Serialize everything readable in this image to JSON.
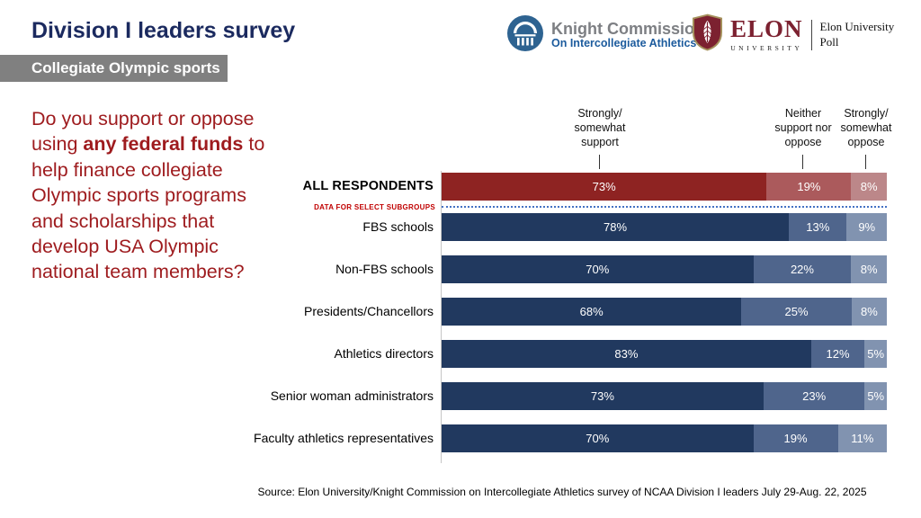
{
  "header": {
    "title": "Division I leaders survey",
    "banner": "Collegiate Olympic sports"
  },
  "logos": {
    "knight": {
      "name": "Knight Commission",
      "tagline": "On Intercollegiate Athletics"
    },
    "elon": {
      "wordmark": "ELON",
      "university": "UNIVERSITY",
      "poll_line1": "Elon University",
      "poll_line2": "Poll"
    }
  },
  "question": {
    "pre": "Do you support or oppose using ",
    "emphasis": "any federal funds",
    "post": " to help finance collegiate Olympic sports programs and scholarships that develop USA Olympic national team members?"
  },
  "chart_data": {
    "type": "bar",
    "orientation": "horizontal",
    "stacked": true,
    "xlim": [
      0,
      100
    ],
    "unit": "%",
    "column_headers": [
      "Strongly/\nsomewhat\nsupport",
      "Neither\nsupport nor\noppose",
      "Strongly/\nsomewhat\noppose"
    ],
    "divider_label": "DATA FOR SELECT SUBGROUPS",
    "categories": [
      "ALL RESPONDENTS",
      "FBS schools",
      "Non-FBS schools",
      "Presidents/Chancellors",
      "Athletics directors",
      "Senior woman administrators",
      "Faculty athletics representatives"
    ],
    "series": [
      {
        "name": "Strongly/somewhat support",
        "values": [
          73,
          78,
          70,
          68,
          83,
          73,
          70
        ]
      },
      {
        "name": "Neither support nor oppose",
        "values": [
          19,
          13,
          22,
          25,
          12,
          23,
          19
        ]
      },
      {
        "name": "Strongly/somewhat oppose",
        "values": [
          8,
          9,
          8,
          8,
          5,
          5,
          11
        ]
      }
    ],
    "palettes": {
      "all_respondents": [
        "#8e2322",
        "#ab5a5c",
        "#bc8789"
      ],
      "subgroups": [
        "#21395f",
        "#4f658c",
        "#8193b0"
      ]
    }
  },
  "source": "Source: Elon University/Knight Commission on Intercollegiate Athletics survey of NCAA Division I leaders July 29-Aug. 22, 2025",
  "colors": {
    "title": "#1b2a5f",
    "question": "#9e1b1e",
    "banner_bg": "#808080",
    "divider_dotted": "#4472c4"
  }
}
